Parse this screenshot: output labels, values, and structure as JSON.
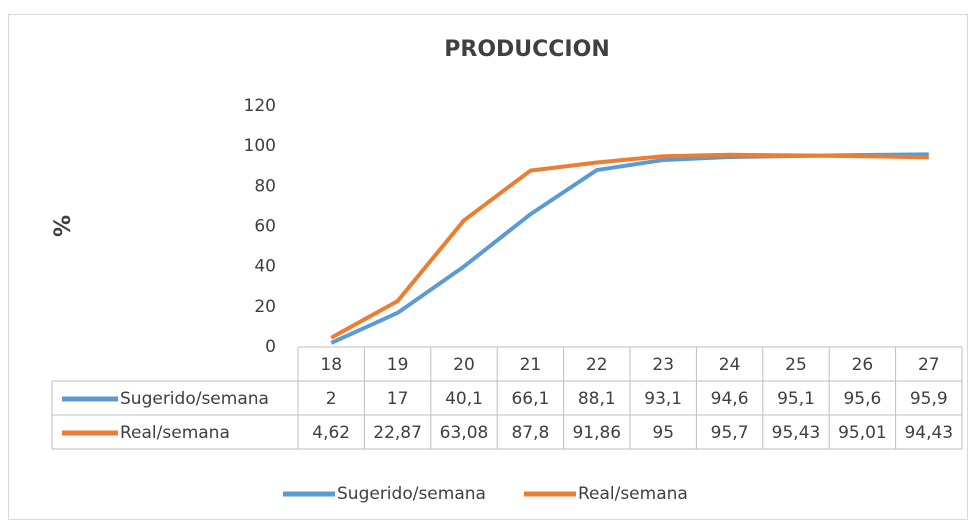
{
  "chart_data": {
    "type": "line",
    "title": "PRODUCCION",
    "y_label": "%",
    "categories": [
      "18",
      "19",
      "20",
      "21",
      "22",
      "23",
      "24",
      "25",
      "26",
      "27"
    ],
    "series": [
      {
        "name": "Sugerido/semana",
        "color": "#5b9bd5",
        "values": [
          2,
          17,
          40.1,
          66.1,
          88.1,
          93.1,
          94.6,
          95.1,
          95.6,
          95.9
        ],
        "value_labels": [
          "2",
          "17",
          "40,1",
          "66,1",
          "88,1",
          "93,1",
          "94,6",
          "95,1",
          "95,6",
          "95,9"
        ]
      },
      {
        "name": "Real/semana",
        "color": "#ed7d31",
        "values": [
          4.62,
          22.87,
          63.08,
          87.8,
          91.86,
          95,
          95.7,
          95.43,
          95.01,
          94.43
        ],
        "value_labels": [
          "4,62",
          "22,87",
          "63,08",
          "87,8",
          "91,86",
          "95",
          "95,7",
          "95,43",
          "95,01",
          "94,43"
        ]
      }
    ],
    "ylim": [
      0,
      120
    ],
    "yticks": [
      0,
      20,
      40,
      60,
      80,
      100,
      120
    ],
    "grid": false,
    "legend": "bottom"
  }
}
